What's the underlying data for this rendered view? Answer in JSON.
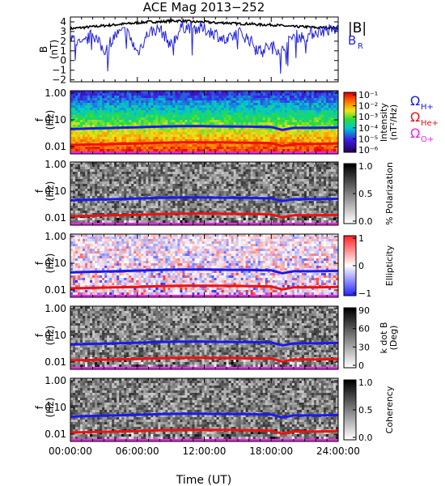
{
  "title": "ACE Mag 2013−252",
  "colors": {
    "B_total": "#000000",
    "B_R": "#2222dd",
    "H_plus": "#1a1aee",
    "He_plus": "#ee1111",
    "O_plus": "#ee22ee"
  },
  "x_axis": {
    "label": "Time (UT)",
    "ticks": [
      "00:00:00",
      "06:00:00",
      "12:00:00",
      "18:00:00",
      "24:00:00"
    ],
    "range_hours": [
      0,
      24
    ]
  },
  "chart_data": [
    {
      "type": "line",
      "title": "ACE Mag 2013−252",
      "ylabel": "B (nT)",
      "ylabel_lines": [
        "B",
        "(nT)"
      ],
      "ylim": [
        -2.2,
        4.5
      ],
      "yticks": [
        "4",
        "3",
        "2",
        "1",
        "0",
        "−1",
        "−2"
      ],
      "ytick_values": [
        4,
        3,
        2,
        1,
        0,
        -1,
        -2
      ],
      "legend": [
        "|B|",
        "B",
        "R"
      ],
      "series": [
        {
          "name": "|B|",
          "x_hours": [
            0,
            1,
            2,
            3,
            4,
            5,
            6,
            7,
            8,
            9,
            10,
            11,
            12,
            13,
            14,
            15,
            16,
            17,
            18,
            19,
            20,
            21,
            22,
            23,
            24
          ],
          "values": [
            3.3,
            3.4,
            3.5,
            3.6,
            3.7,
            3.8,
            3.9,
            4.0,
            4.0,
            4.1,
            4.1,
            4.0,
            4.0,
            3.9,
            3.9,
            3.8,
            3.8,
            3.7,
            3.7,
            3.6,
            3.5,
            3.5,
            3.4,
            3.4,
            3.4
          ]
        },
        {
          "name": "B_R",
          "x_hours": [
            0,
            1,
            2,
            3,
            4,
            5,
            6,
            7,
            8,
            9,
            10,
            11,
            12,
            13,
            14,
            15,
            16,
            17,
            18,
            19,
            20,
            21,
            22,
            23,
            24
          ],
          "values": [
            2.5,
            1.5,
            2.8,
            1.0,
            2.6,
            3.1,
            0.8,
            2.9,
            3.3,
            1.6,
            3.5,
            3.4,
            3.2,
            2.8,
            1.9,
            3.0,
            2.2,
            1.0,
            1.5,
            1.0,
            2.6,
            2.4,
            3.0,
            3.1,
            3.2
          ]
        }
      ]
    },
    {
      "type": "heatmap",
      "ylabel_lines": [
        "f",
        "(Hz)"
      ],
      "yticks": [
        "1.00",
        "0.10",
        "0.01"
      ],
      "colorbar": {
        "label": "Intensity (nT²/Hz)",
        "label_lines": [
          "Intensity",
          "(nT²/Hz)"
        ],
        "ticks": [
          "10⁻¹",
          "10⁻²",
          "10⁻³",
          "10⁻⁴",
          "10⁻⁵",
          "10⁻⁶"
        ],
        "scale": "rainbow"
      },
      "legend": [
        "Ω",
        "H+",
        "Ω",
        "He+",
        "Ω",
        "O+"
      ]
    },
    {
      "type": "heatmap",
      "ylabel_lines": [
        "f",
        "(Hz)"
      ],
      "yticks": [
        "1.00",
        "0.10",
        "0.01"
      ],
      "colorbar": {
        "label": "% Polarization",
        "ticks": [
          "1.0",
          "0.5",
          "0.0"
        ],
        "range": [
          0,
          1
        ],
        "scale": "gray"
      }
    },
    {
      "type": "heatmap",
      "ylabel_lines": [
        "f",
        "(Hz)"
      ],
      "yticks": [
        "1.00",
        "0.10",
        "0.01"
      ],
      "colorbar": {
        "label": "Ellipticity",
        "ticks": [
          "1",
          "0",
          "−1"
        ],
        "range": [
          -1,
          1
        ],
        "scale": "bwr"
      }
    },
    {
      "type": "heatmap",
      "ylabel_lines": [
        "f",
        "(Hz)"
      ],
      "yticks": [
        "1.00",
        "0.10",
        "0.01"
      ],
      "colorbar": {
        "label": "k dot B (Deg)",
        "label_lines": [
          "k dot B",
          "(Deg)"
        ],
        "ticks": [
          "90",
          "60",
          "30",
          "0"
        ],
        "range": [
          0,
          90
        ],
        "scale": "gray"
      }
    },
    {
      "type": "heatmap",
      "ylabel_lines": [
        "f",
        "(Hz)"
      ],
      "yticks": [
        "1.00",
        "0.10",
        "0.01"
      ],
      "colorbar": {
        "label": "Coherency",
        "ticks": [
          "1.0",
          "0.5",
          "0.0"
        ],
        "range": [
          0,
          1
        ],
        "scale": "gray"
      }
    }
  ],
  "gyrofrequency_lines": {
    "x_hours": [
      0,
      2,
      4,
      6,
      8,
      10,
      12,
      14,
      16,
      17,
      18,
      19,
      20,
      22,
      24
    ],
    "H_plus_Hz": [
      0.045,
      0.048,
      0.05,
      0.053,
      0.056,
      0.058,
      0.058,
      0.057,
      0.056,
      0.055,
      0.054,
      0.042,
      0.05,
      0.05,
      0.052
    ],
    "He_plus_Hz": [
      0.0115,
      0.012,
      0.0125,
      0.013,
      0.014,
      0.0145,
      0.0145,
      0.0143,
      0.014,
      0.0138,
      0.0135,
      0.0105,
      0.0125,
      0.0125,
      0.013
    ],
    "O_plus_Hz": [
      0.0029,
      0.003,
      0.0031,
      0.0033,
      0.0035,
      0.0036,
      0.0036,
      0.0036,
      0.0035,
      0.0034,
      0.0034,
      0.0027,
      0.0031,
      0.0031,
      0.0032
    ]
  }
}
